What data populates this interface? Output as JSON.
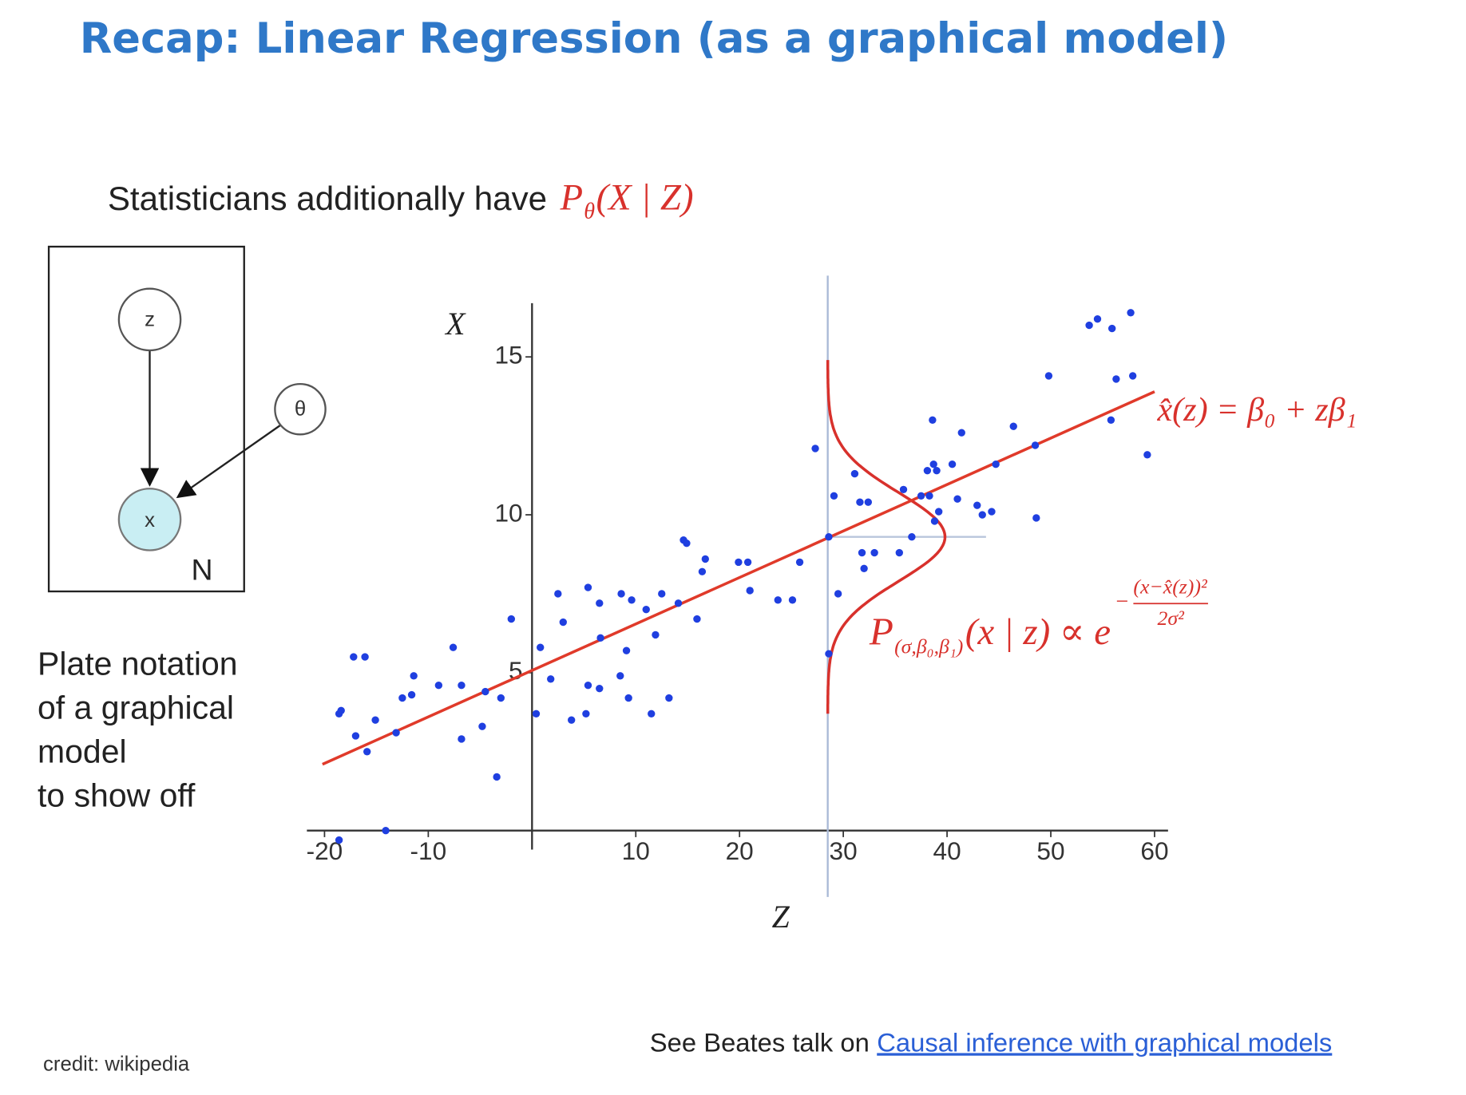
{
  "title": "Recap: Linear Regression (as a graphical model)",
  "subtitle": {
    "text": "Statisticians additionally have",
    "formula": {
      "main": "P",
      "sub": "θ",
      "rest": "(X | Z)"
    }
  },
  "plate": {
    "nodes": [
      "z",
      "θ",
      "x"
    ],
    "label": "N"
  },
  "caption": [
    "Plate notation",
    "of a graphical",
    "model",
    "to show off"
  ],
  "credit": "credit: wikipedia",
  "footer": {
    "text": "See Beates talk on",
    "link": "Causal inference with graphical models"
  },
  "chart_data": {
    "type": "scatter",
    "xlabel": "Z",
    "ylabel": "X",
    "xlim": [
      -21.7,
      61.3
    ],
    "ylim": [
      -0.6,
      16.7
    ],
    "xticks": [
      -20,
      -10,
      10,
      20,
      30,
      40,
      50,
      60
    ],
    "yticks": [
      5,
      10,
      15
    ],
    "series": [
      {
        "color": "#1f3fe0",
        "x": [
          -18.6,
          -18.4,
          -17.2,
          -16.1,
          -17,
          -15.9,
          -15.1,
          -14.1,
          -18.6,
          -13.1,
          -12.5,
          -11.6,
          -11.4,
          -9,
          -7.6,
          -6.8,
          -6.8,
          -4.8,
          -4.5,
          -3.4,
          -3.0,
          -2,
          0.4,
          0.8,
          1.8,
          2.5,
          3.0,
          3.8,
          5.2,
          5.4,
          5.4,
          6.5,
          6.5,
          6.6,
          8.5,
          8.6,
          9.1,
          9.3,
          9.6,
          11,
          11.5,
          11.9,
          12.5,
          13.2,
          14.1,
          14.6,
          14.9,
          15.9,
          16.4,
          16.7,
          19.9,
          20.8,
          21,
          23.7,
          25.1,
          25.8,
          27.3,
          28.6,
          28.6,
          29.1,
          29.5,
          31.1,
          31.6,
          32.4,
          31.8,
          32.0,
          33,
          35.4,
          35.8,
          36.6,
          37.5,
          38.1,
          38.3,
          38.6,
          38.7,
          39,
          38.8,
          39.2,
          40.5,
          41,
          41.4,
          42.9,
          43.4,
          44.3,
          44.7,
          46.4,
          48.5,
          48.6,
          49.8,
          53.7,
          54.5,
          55.9,
          55.8,
          56.3,
          57.7,
          57.9,
          59.3
        ],
        "values": [
          3.7,
          3.8,
          5.5,
          5.5,
          3.0,
          2.5,
          3.5,
          0.0,
          -0.3,
          3.1,
          4.2,
          4.3,
          4.9,
          4.6,
          5.8,
          4.6,
          2.9,
          3.3,
          4.4,
          1.7,
          4.2,
          6.7,
          3.7,
          5.8,
          4.8,
          7.5,
          6.6,
          3.5,
          3.7,
          4.6,
          7.7,
          4.5,
          7.2,
          6.1,
          4.9,
          7.5,
          5.7,
          4.2,
          7.3,
          7.0,
          3.7,
          6.2,
          7.5,
          4.2,
          7.2,
          9.2,
          9.1,
          6.7,
          8.2,
          8.6,
          8.5,
          8.5,
          7.6,
          7.3,
          7.3,
          8.5,
          12.1,
          5.6,
          9.3,
          10.6,
          7.5,
          11.3,
          10.4,
          10.4,
          8.8,
          8.3,
          8.8,
          8.8,
          10.8,
          9.3,
          10.6,
          11.4,
          10.6,
          13.0,
          11.6,
          11.4,
          9.8,
          10.1,
          11.6,
          10.5,
          12.6,
          10.3,
          10.0,
          10.1,
          11.6,
          12.8,
          12.2,
          9.9,
          14.4,
          16.0,
          16.2,
          15.9,
          13.0,
          14.3,
          16.4,
          14.4,
          11.9
        ]
      }
    ],
    "fit_line": {
      "color": "#e03a2a",
      "x": [
        -20.2,
        60
      ],
      "values": [
        2.1,
        13.9
      ]
    },
    "density": {
      "color": "#d8312c",
      "z": 28.5,
      "mean": 9.3,
      "sd": 1.4,
      "height": 11.3
    },
    "annotations": {
      "fit": "x̂(z) = β₀ + zβ₁",
      "likelihood": {
        "main": "P",
        "sub": "(σ,β₀,β₁)",
        "rest": "(x | z) ∝ e",
        "minus": "−",
        "numerator": "(x−x̂(z))²",
        "denominator": "2σ²"
      }
    }
  }
}
